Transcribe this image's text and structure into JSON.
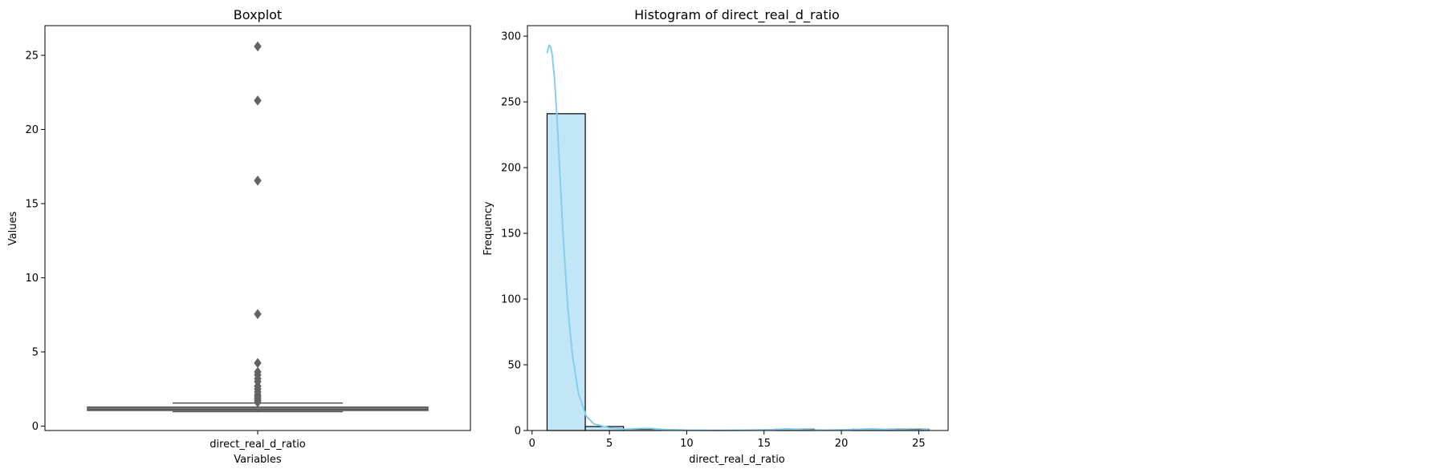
{
  "chart_data": [
    {
      "type": "box",
      "title": "Boxplot",
      "xlabel": "Variables",
      "ylabel": "Values",
      "categories": [
        "direct_real_d_ratio"
      ],
      "ylim": [
        -0.3,
        27.0
      ],
      "yticks": [
        0,
        5,
        10,
        15,
        20,
        25
      ],
      "grid": false,
      "box": {
        "whisker_low": 0.97,
        "q1": 1.05,
        "median": 1.13,
        "q3": 1.28,
        "whisker_high": 1.55
      },
      "outliers": [
        1.6,
        1.72,
        1.85,
        1.98,
        2.1,
        2.3,
        2.5,
        2.7,
        3.0,
        3.2,
        3.45,
        3.65,
        4.25,
        7.55,
        16.55,
        21.95,
        25.6
      ],
      "colors": {
        "box_fill": "#7f7f7f",
        "line": "#5a5a5a",
        "outlier": "#636363"
      }
    },
    {
      "type": "histogram",
      "title": "Histogram of direct_real_d_ratio",
      "xlabel": "direct_real_d_ratio",
      "ylabel": "Frequency",
      "xlim": [
        -0.3,
        26.9
      ],
      "ylim": [
        0,
        308
      ],
      "xticks": [
        0,
        5,
        10,
        15,
        20,
        25
      ],
      "yticks": [
        0,
        50,
        100,
        150,
        200,
        250,
        300
      ],
      "grid": false,
      "bins": [
        {
          "x0": 0.97,
          "x1": 3.44,
          "count": 241
        },
        {
          "x0": 3.44,
          "x1": 5.91,
          "count": 3
        },
        {
          "x0": 5.91,
          "x1": 8.38,
          "count": 1
        },
        {
          "x0": 8.38,
          "x1": 10.84,
          "count": 0
        },
        {
          "x0": 10.84,
          "x1": 13.31,
          "count": 0
        },
        {
          "x0": 13.31,
          "x1": 15.78,
          "count": 0
        },
        {
          "x0": 15.78,
          "x1": 18.25,
          "count": 1
        },
        {
          "x0": 18.25,
          "x1": 20.71,
          "count": 0
        },
        {
          "x0": 20.71,
          "x1": 23.18,
          "count": 1
        },
        {
          "x0": 23.18,
          "x1": 25.65,
          "count": 1
        }
      ],
      "kde": {
        "x": [
          0.97,
          1.1,
          1.2,
          1.3,
          1.45,
          1.6,
          1.8,
          2.0,
          2.3,
          2.6,
          3.0,
          3.5,
          4.0,
          5.0,
          6.0,
          7.0,
          7.6,
          8.5,
          10.0,
          12.0,
          14.0,
          15.5,
          16.5,
          17.5,
          19.0,
          20.5,
          22.0,
          23.5,
          25.0,
          25.65
        ],
        "y": [
          287,
          293,
          292,
          286,
          268,
          240,
          195,
          150,
          95,
          58,
          28,
          11,
          5,
          2,
          1,
          1.5,
          1.6,
          0.8,
          0.2,
          0.1,
          0.2,
          0.6,
          1.3,
          0.6,
          0.2,
          0.6,
          1.3,
          0.6,
          0.4,
          0.8
        ]
      },
      "colors": {
        "bar_fill": "#c3e6f6",
        "bar_edge": "#000000",
        "kde": "#87ceeb"
      }
    }
  ]
}
